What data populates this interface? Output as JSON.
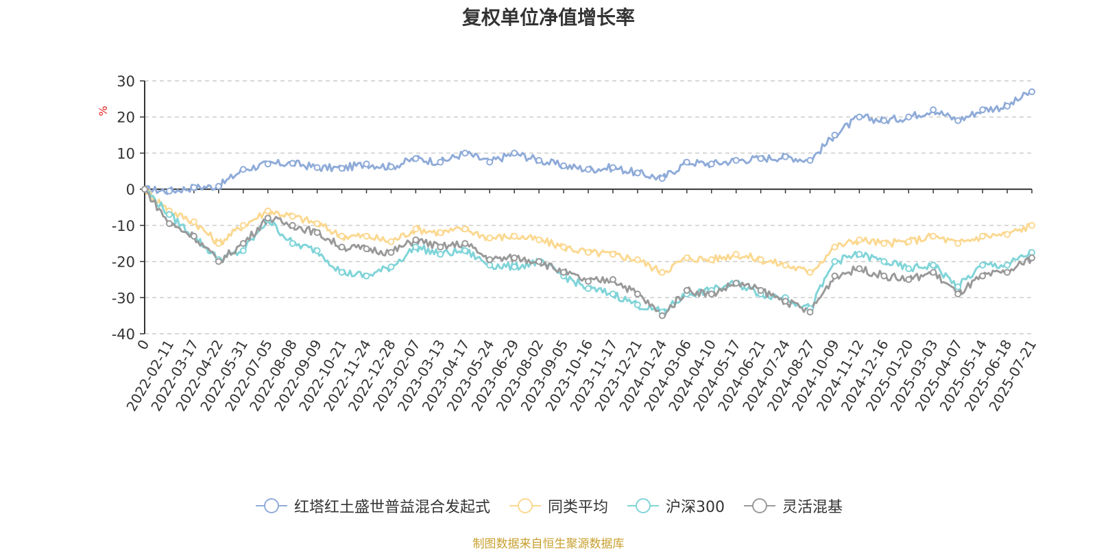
{
  "chart_data": {
    "type": "line",
    "title": "复权单位净值增长率",
    "ylabel": "%",
    "ylim": [
      -40,
      30
    ],
    "yticks": [
      -40,
      -30,
      -20,
      -10,
      0,
      10,
      20,
      30
    ],
    "grid": true,
    "legend_position": "bottom",
    "x_ticks": [
      "0",
      "2022-02-11",
      "2022-03-17",
      "2022-04-22",
      "2022-05-31",
      "2022-07-05",
      "2022-08-08",
      "2022-09-09",
      "2022-10-21",
      "2022-11-24",
      "2022-12-28",
      "2023-02-07",
      "2023-03-13",
      "2023-04-17",
      "2023-05-24",
      "2023-06-29",
      "2023-08-02",
      "2023-09-05",
      "2023-10-16",
      "2023-11-17",
      "2023-12-21",
      "2024-01-24",
      "2024-03-06",
      "2024-04-10",
      "2024-05-17",
      "2024-06-21",
      "2024-07-24",
      "2024-08-27",
      "2024-10-09",
      "2024-11-12",
      "2024-12-16",
      "2025-01-20",
      "2025-03-03",
      "2025-04-07",
      "2025-05-14",
      "2025-06-18",
      "2025-07-21"
    ],
    "series": [
      {
        "name": "红塔红土盛世普益混合发起式",
        "color": "#8fabd8",
        "values": [
          0,
          -0.5,
          0.5,
          0.8,
          5.5,
          7,
          7.2,
          6,
          5.8,
          7,
          6.2,
          8.5,
          7.5,
          10,
          7.5,
          10,
          8,
          6.5,
          5.5,
          6,
          4.5,
          3,
          7.5,
          7,
          8,
          8.5,
          9,
          8,
          15,
          20,
          19,
          20,
          22,
          19,
          22,
          23,
          27
        ]
      },
      {
        "name": "同类平均",
        "color": "#fbd890",
        "values": [
          0,
          -6,
          -9,
          -15,
          -10,
          -6,
          -7.5,
          -9.5,
          -13,
          -13,
          -14.5,
          -11,
          -12,
          -11,
          -13.5,
          -13,
          -14,
          -16,
          -17.5,
          -18,
          -19.5,
          -23,
          -19,
          -19.5,
          -18,
          -19.5,
          -21,
          -23,
          -16,
          -14,
          -15,
          -14.5,
          -13,
          -15,
          -13,
          -12.5,
          -10
        ]
      },
      {
        "name": "沪深300",
        "color": "#80d4d8",
        "values": [
          0,
          -7,
          -13,
          -19.5,
          -17,
          -8.5,
          -15,
          -17,
          -23,
          -24,
          -21.5,
          -16,
          -18,
          -17,
          -21,
          -21.5,
          -20,
          -24,
          -27.5,
          -29,
          -32,
          -34,
          -29,
          -28,
          -26,
          -29,
          -30,
          -33,
          -20,
          -18,
          -20,
          -22,
          -21,
          -27,
          -21,
          -21,
          -17.5
        ]
      },
      {
        "name": "灵活混基",
        "color": "#999999",
        "values": [
          0,
          -9.5,
          -13,
          -20,
          -15,
          -8,
          -10,
          -12,
          -16,
          -16.5,
          -17.5,
          -14,
          -16,
          -15,
          -19.5,
          -19,
          -20,
          -23,
          -25.5,
          -25,
          -29,
          -35,
          -28,
          -29,
          -26,
          -28,
          -31,
          -34,
          -24,
          -22,
          -24,
          -25,
          -23,
          -29,
          -24,
          -23,
          -19
        ]
      }
    ]
  },
  "source": "制图数据来自恒生聚源数据库"
}
